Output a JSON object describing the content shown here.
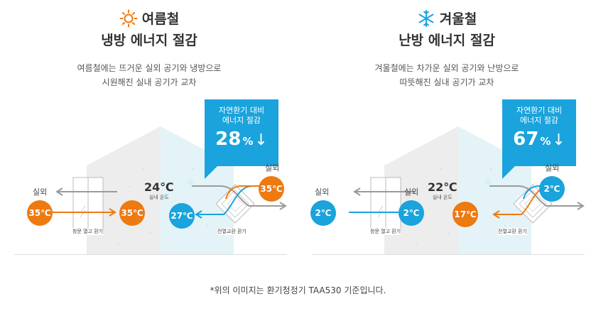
{
  "summer": {
    "title1": "여름철",
    "title2": "냉방 에너지 절감",
    "desc_line1": "여름철에는 뜨거운 실외 공기와 냉방으로",
    "desc_line2": "시원해진 실내 공기가 교차",
    "callout_line1": "자연환기 대비",
    "callout_line2": "에너지 절감",
    "saving_value": "28",
    "saving_unit": "%",
    "saving_arrow": "↓",
    "outdoor_label_window": "실외",
    "outdoor_label_erv": "실외",
    "window_out_temp": "35℃",
    "window_in_temp": "35℃",
    "indoor_temp": "24℃",
    "indoor_label": "실내 온도",
    "erv_in_temp": "27℃",
    "erv_out_temp": "35℃",
    "window_caption": "창문 열고 환기",
    "erv_caption": "전열교환 환기",
    "icon": "sun-icon"
  },
  "winter": {
    "title1": "겨울철",
    "title2": "난방 에너지 절감",
    "desc_line1": "겨울철에는 차가운 실외 공기와 난방으로",
    "desc_line2": "따뜻해진 실내 공기가 교차",
    "callout_line1": "자연환기 대비",
    "callout_line2": "에너지 절감",
    "saving_value": "67",
    "saving_unit": "%",
    "saving_arrow": "↓",
    "outdoor_label_window": "실외",
    "outdoor_label_mid": "실외",
    "outdoor_label_erv": "실외",
    "window_out_temp": "2℃",
    "window_in_temp": "2℃",
    "indoor_temp": "22℃",
    "indoor_label": "실내 온도",
    "erv_in_temp": "17℃",
    "erv_out_temp": "2℃",
    "window_caption": "창문 열고 환기",
    "erv_caption": "전열교환 환기",
    "icon": "snowflake-icon"
  },
  "colors": {
    "hot": "#ee7a12",
    "cold": "#1aa3dc",
    "gray_arrow": "#9a9a9a"
  },
  "footnote": "*위의 이미지는 환기청정기 TAA530 기준입니다."
}
